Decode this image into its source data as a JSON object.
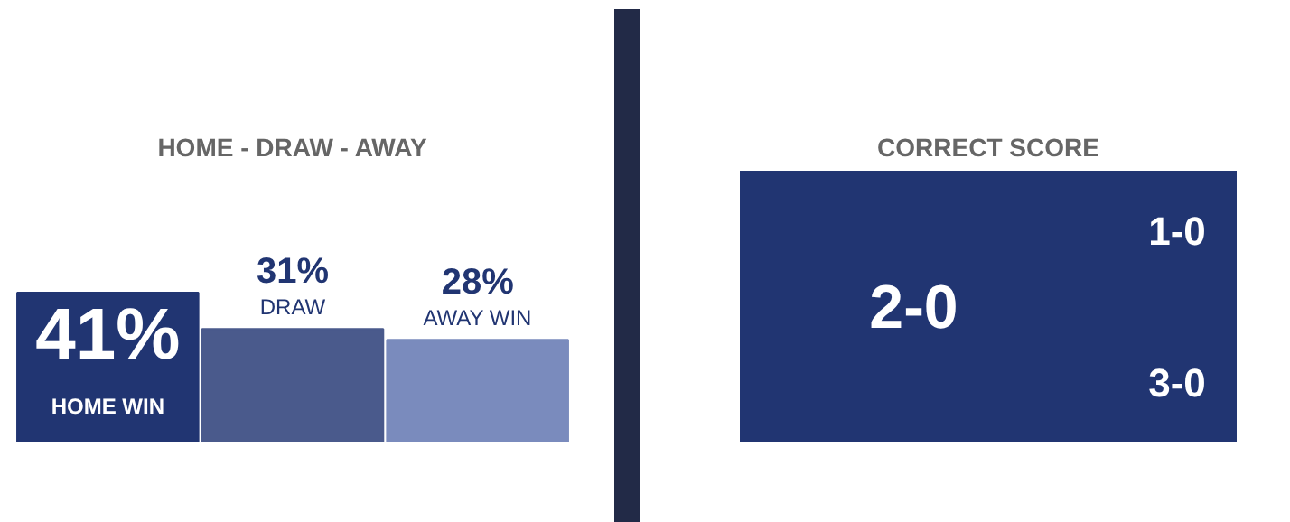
{
  "chart_data": [
    {
      "type": "bar",
      "title": "HOME - DRAW - AWAY",
      "categories": [
        "HOME WIN",
        "DRAW",
        "AWAY WIN"
      ],
      "values": [
        41,
        31,
        28
      ],
      "colors": [
        "#213572",
        "#4a5a8c",
        "#7a8bbd"
      ],
      "value_labels": [
        "41%",
        "31%",
        "28%"
      ]
    },
    {
      "type": "other",
      "title": "CORRECT SCORE",
      "color": "#213572",
      "annotations": [
        "2-0",
        "1-0",
        "3-0"
      ]
    }
  ]
}
